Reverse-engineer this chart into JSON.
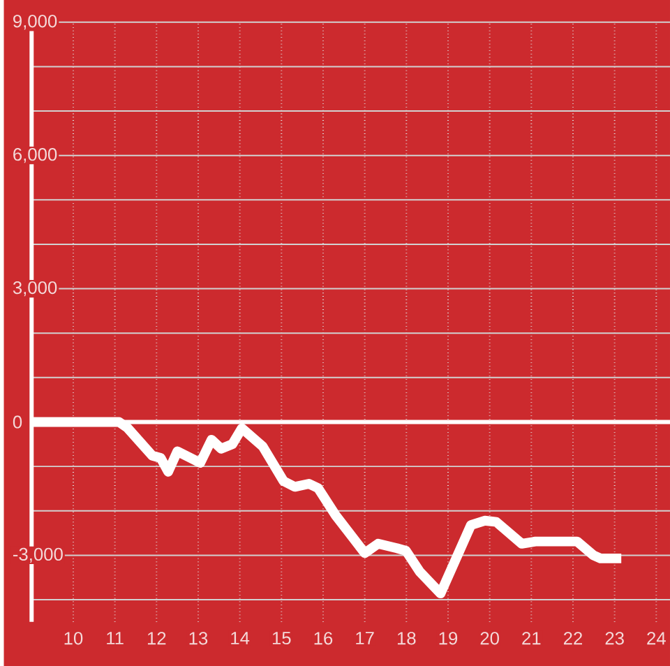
{
  "chart_data": {
    "type": "line",
    "x": [
      9.0,
      11.1,
      11.3,
      11.9,
      12.1,
      12.28,
      12.5,
      13.05,
      13.32,
      13.55,
      13.82,
      14.05,
      14.55,
      15.05,
      15.32,
      15.66,
      15.88,
      16.3,
      17.0,
      17.32,
      17.77,
      17.99,
      18.32,
      18.82,
      19.55,
      19.88,
      20.16,
      20.77,
      21.1,
      22.1,
      22.49,
      22.66,
      23.16
    ],
    "series": [
      {
        "color": "#ffffff",
        "values": [
          0,
          0,
          -130,
          -760,
          -810,
          -1120,
          -660,
          -920,
          -400,
          -600,
          -500,
          -140,
          -550,
          -1330,
          -1460,
          -1390,
          -1490,
          -2100,
          -2950,
          -2740,
          -2840,
          -2900,
          -3370,
          -3860,
          -2320,
          -2220,
          -2250,
          -2740,
          -2690,
          -2690,
          -3000,
          -3070,
          -3070
        ]
      }
    ],
    "xlim": [
      9,
      24.33
    ],
    "ylim": [
      -4500,
      9000
    ],
    "xticks": [
      10,
      11,
      12,
      13,
      14,
      15,
      16,
      17,
      18,
      19,
      20,
      21,
      22,
      23,
      24
    ],
    "yticks": [
      {
        "value": -4000,
        "label": null
      },
      {
        "value": -3000,
        "label": "-3,000"
      },
      {
        "value": -2000,
        "label": null
      },
      {
        "value": -1000,
        "label": null
      },
      {
        "value": 0,
        "label": "0"
      },
      {
        "value": 1000,
        "label": null
      },
      {
        "value": 2000,
        "label": null
      },
      {
        "value": 3000,
        "label": "3,000"
      },
      {
        "value": 4000,
        "label": null
      },
      {
        "value": 5000,
        "label": null
      },
      {
        "value": 6000,
        "label": "6,000"
      },
      {
        "value": 7000,
        "label": null
      },
      {
        "value": 8000,
        "label": null
      },
      {
        "value": 9000,
        "label": "9,000"
      }
    ],
    "grid": true,
    "ref_lines": [
      {
        "axis": "y",
        "value": 0,
        "color": "#ffffff"
      }
    ]
  }
}
